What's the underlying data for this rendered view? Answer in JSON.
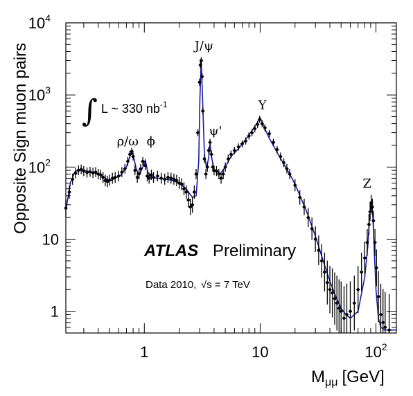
{
  "chart_data": {
    "type": "scatter",
    "xlabel": "M_{μμ} [GeV]",
    "xlabel_main": "M",
    "xlabel_sub": "μμ",
    "xlabel_unit": "[GeV]",
    "ylabel": "Opposite Sign muon pairs",
    "xscale": "log",
    "yscale": "log",
    "xlim": [
      0.21,
      150
    ],
    "ylim": [
      0.5,
      10000
    ],
    "grid": false,
    "legend": "none",
    "x_ticks": [
      {
        "value": 1,
        "label": "1"
      },
      {
        "value": 10,
        "label": "10"
      },
      {
        "value": 100,
        "label": "10",
        "exp": "2"
      }
    ],
    "y_ticks": [
      {
        "value": 1,
        "label": "1"
      },
      {
        "value": 10,
        "label": "10"
      },
      {
        "value": 100,
        "label": "10",
        "exp": "2"
      },
      {
        "value": 1000,
        "label": "10",
        "exp": "3"
      },
      {
        "value": 10000,
        "label": "10",
        "exp": "4"
      }
    ],
    "annotations": {
      "integral_symbol": "∫",
      "lumi_text": "L ~ 330 nb",
      "lumi_sup": "-1",
      "atlas": "ATLAS",
      "preliminary": "Preliminary",
      "data_label": "Data 2010,",
      "sqrt_s": "√s = 7 TeV",
      "resonances": [
        {
          "label": "ρ/ω",
          "x": 0.78
        },
        {
          "label": "ϕ",
          "x": 1.02
        },
        {
          "label": "J/ψ",
          "x": 3.1
        },
        {
          "label": "ψ'",
          "x": 3.69
        },
        {
          "label": "Υ",
          "x": 9.9
        },
        {
          "label": "Z",
          "x": 91
        }
      ]
    },
    "colors": {
      "data": "#000000",
      "fit": "#1a1aa6"
    },
    "series": [
      {
        "kind": "data",
        "x": [
          0.21,
          0.225,
          0.24,
          0.255,
          0.27,
          0.285,
          0.3,
          0.32,
          0.34,
          0.36,
          0.38,
          0.4,
          0.42,
          0.44,
          0.46,
          0.48,
          0.5,
          0.53,
          0.56,
          0.6,
          0.64,
          0.68,
          0.72,
          0.75,
          0.78,
          0.8,
          0.83,
          0.87,
          0.9,
          0.93,
          0.97,
          1.02,
          1.06,
          1.1,
          1.15,
          1.2,
          1.3,
          1.4,
          1.5,
          1.6,
          1.7,
          1.8,
          1.9,
          2.0,
          2.1,
          2.2,
          2.3,
          2.4,
          2.5,
          2.6,
          2.7,
          2.8,
          2.9,
          3.0,
          3.05,
          3.1,
          3.15,
          3.2,
          3.3,
          3.4,
          3.5,
          3.6,
          3.69,
          3.8,
          3.9,
          4.0,
          4.2,
          4.4,
          4.6,
          4.8,
          5.0,
          5.3,
          5.6,
          6.0,
          6.5,
          7.0,
          7.5,
          8.0,
          8.5,
          9.0,
          9.5,
          9.9,
          10.4,
          11,
          12,
          13,
          14,
          15,
          16,
          17,
          18,
          20,
          22,
          24,
          26,
          28,
          30,
          32,
          34,
          36,
          38,
          40,
          42,
          44,
          46,
          48,
          50,
          53,
          56,
          60,
          65,
          70,
          75,
          80,
          84,
          87,
          89,
          91,
          93,
          95,
          98,
          101,
          105,
          110,
          115,
          120,
          130
        ],
        "y": [
          27,
          45,
          68,
          82,
          90,
          93,
          88,
          84,
          86,
          83,
          85,
          80,
          78,
          72,
          65,
          63,
          66,
          70,
          72,
          75,
          85,
          95,
          120,
          150,
          165,
          140,
          90,
          72,
          80,
          95,
          120,
          105,
          75,
          70,
          78,
          72,
          75,
          70,
          68,
          72,
          70,
          68,
          65,
          60,
          58,
          50,
          45,
          35,
          28,
          30,
          45,
          80,
          300,
          1500,
          2600,
          3000,
          1800,
          600,
          130,
          80,
          100,
          170,
          220,
          150,
          100,
          90,
          88,
          80,
          70,
          80,
          100,
          130,
          150,
          170,
          190,
          210,
          230,
          270,
          300,
          340,
          390,
          460,
          400,
          350,
          290,
          220,
          175,
          140,
          115,
          95,
          80,
          56,
          38,
          28,
          20,
          14,
          10,
          7,
          5,
          3.5,
          2.5,
          2.0,
          1.8,
          1.5,
          1.3,
          1.1,
          1.0,
          0.8,
          0.9,
          1.0,
          1.3,
          2.0,
          3.5,
          5.5,
          9,
          16,
          24,
          32,
          28,
          18,
          9,
          4,
          1.6,
          0.9,
          0.7,
          0.6,
          0.55
        ]
      },
      {
        "kind": "fit",
        "x": [
          0.21,
          0.23,
          0.25,
          0.27,
          0.3,
          0.35,
          0.4,
          0.45,
          0.5,
          0.56,
          0.63,
          0.7,
          0.75,
          0.78,
          0.8,
          0.85,
          0.9,
          0.96,
          1.02,
          1.07,
          1.15,
          1.3,
          1.5,
          1.7,
          2.0,
          2.3,
          2.6,
          2.8,
          2.95,
          3.02,
          3.1,
          3.18,
          3.3,
          3.45,
          3.6,
          3.69,
          3.8,
          4.0,
          4.5,
          5.0,
          5.6,
          6.5,
          7.5,
          8.5,
          9.5,
          10.0,
          10.4,
          11,
          12,
          14,
          16,
          18,
          20,
          25,
          30,
          35,
          40,
          45,
          50,
          55,
          60,
          70,
          80,
          85,
          88,
          91,
          94,
          97,
          100,
          105,
          110,
          120,
          150
        ],
        "y": [
          25,
          60,
          85,
          92,
          90,
          85,
          80,
          72,
          64,
          70,
          78,
          100,
          140,
          170,
          150,
          95,
          78,
          95,
          125,
          85,
          72,
          70,
          68,
          66,
          60,
          50,
          38,
          40,
          120,
          900,
          3100,
          900,
          150,
          95,
          140,
          210,
          140,
          92,
          80,
          100,
          140,
          180,
          240,
          320,
          420,
          480,
          420,
          340,
          250,
          160,
          110,
          80,
          58,
          25,
          11,
          5,
          2.6,
          1.6,
          1.1,
          0.9,
          0.8,
          1.0,
          3.0,
          8,
          20,
          34,
          20,
          6,
          2,
          0.8,
          0.6,
          0.55,
          0.55
        ]
      }
    ]
  }
}
